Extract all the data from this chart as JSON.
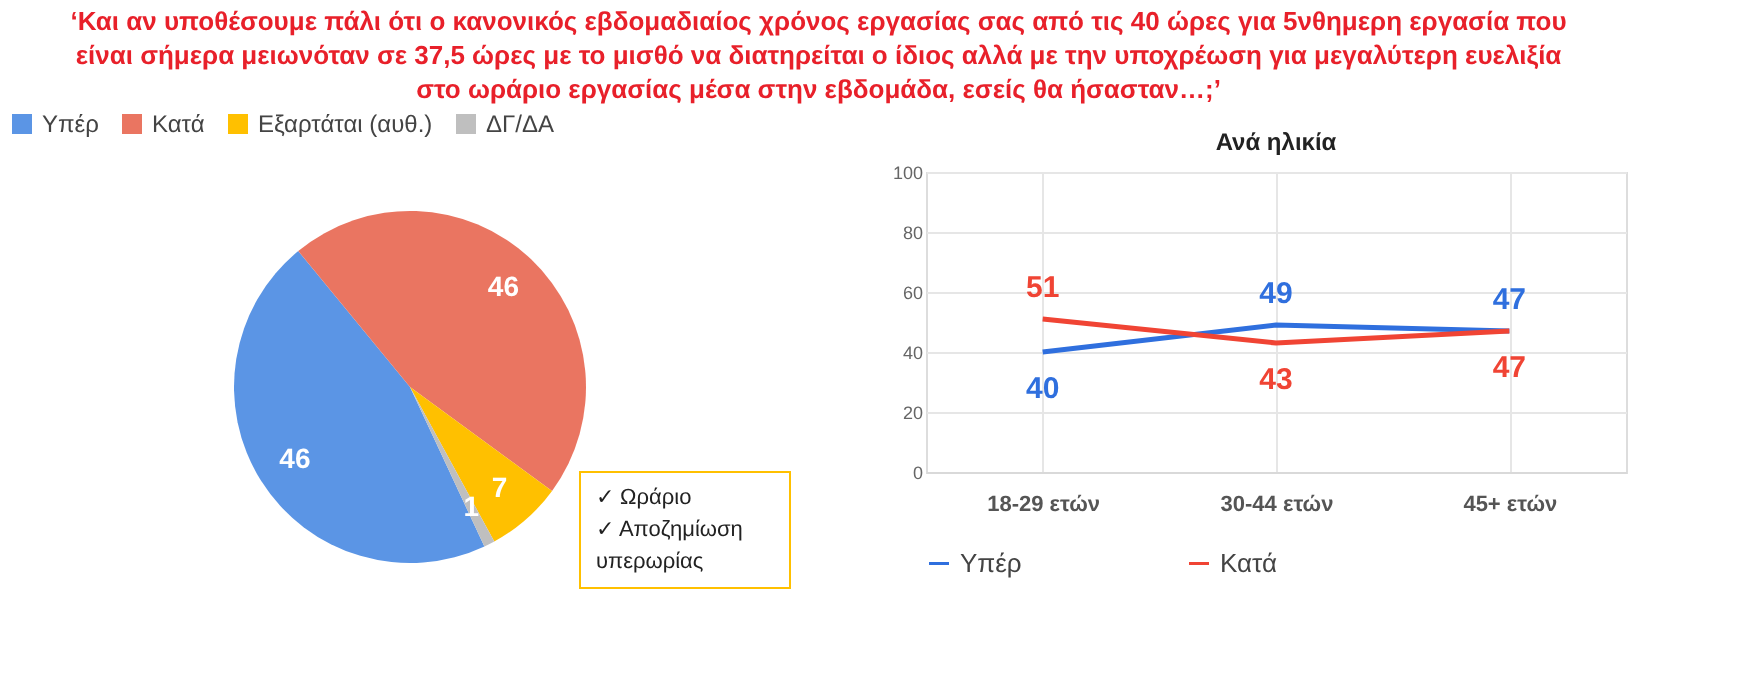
{
  "chart_data": [
    {
      "type": "pie",
      "title": "‘Και αν υποθέσουμε πάλι ότι ο κανονικός εβδομαδιαίος χρόνος εργασίας σας από τις 40 ώρες για 5νθημερη εργασία που είναι σήμερα μειωνόταν σε 37,5 ώρες με το μισθό να διατηρείται ο ίδιος αλλά με την υποχρέωση για μεγαλύτερη ευελιξία στο ωράριο εργασίας μέσα στην εβδομάδα, εσείς θα ήσασταν…;’",
      "categories": [
        "Υπέρ",
        "Κατά",
        "Εξαρτάται (αυθ.)",
        "ΔΓ/ΔΑ"
      ],
      "values": [
        46,
        46,
        7,
        1
      ],
      "colors": [
        "#5b95e5",
        "#ea7561",
        "#ffc000",
        "#bfbfbf"
      ],
      "data_labels": true,
      "legend": "top",
      "annotations": [
        "✓ Ωράριο",
        "✓ Αποζημίωση υπερωρίας"
      ]
    },
    {
      "type": "line",
      "title": "Ανά ηλικία",
      "categories": [
        "18-29 ετών",
        "30-44 ετών",
        "45+ ετών"
      ],
      "series": [
        {
          "name": "Υπέρ",
          "color": "#2f6fde",
          "values": [
            40,
            49,
            47
          ]
        },
        {
          "name": "Κατά",
          "color": "#f04434",
          "values": [
            51,
            43,
            47
          ]
        }
      ],
      "ylim": [
        0,
        100
      ],
      "yticks": [
        0,
        20,
        40,
        60,
        80,
        100
      ],
      "grid": true,
      "legend": "bottom",
      "data_labels": true,
      "marker": "none",
      "line_style": "solid"
    }
  ]
}
